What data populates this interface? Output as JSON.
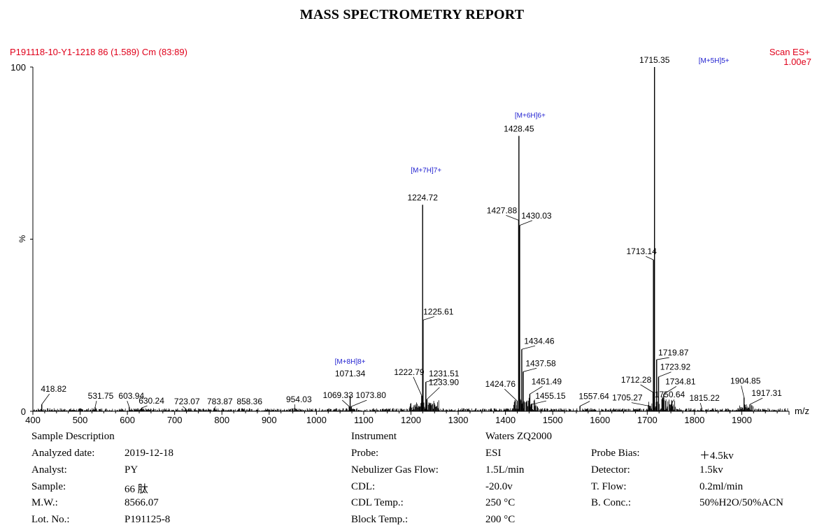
{
  "report_title": "MASS SPECTROMETRY REPORT",
  "chart_data": {
    "type": "line",
    "sample_id": "P191118-10-Y1-1218 86 (1.589) Cm (83:89)",
    "scan_mode": "Scan ES+",
    "intensity": "1.00e7",
    "xlabel": "m/z",
    "ylabel": "%",
    "xlim": [
      400,
      2000
    ],
    "ylim": [
      0,
      100
    ],
    "x_ticks": [
      "400",
      "500",
      "600",
      "700",
      "800",
      "900",
      "1000",
      "1100",
      "1200",
      "1300",
      "1400",
      "1500",
      "1600",
      "1700",
      "1800",
      "1900"
    ],
    "y_ticks": [
      "0",
      "100"
    ],
    "peaks": [
      {
        "mz": 418.82,
        "label": "418.82",
        "rel": 2.0
      },
      {
        "mz": 531.75,
        "label": "531.75",
        "rel": 1.2
      },
      {
        "mz": 603.94,
        "label": "603.94",
        "rel": 1.2
      },
      {
        "mz": 630.24,
        "label": "630.24",
        "rel": 1.0
      },
      {
        "mz": 723.07,
        "label": "723.07",
        "rel": 0.8
      },
      {
        "mz": 783.87,
        "label": "783.87",
        "rel": 0.8
      },
      {
        "mz": 858.36,
        "label": "858.36",
        "rel": 0.8
      },
      {
        "mz": 954.03,
        "label": "954.03",
        "rel": 1.0
      },
      {
        "mz": 1069.33,
        "label": "1069.33",
        "rel": 1.4
      },
      {
        "mz": 1071.34,
        "label": "1071.34",
        "rel": 4.5
      },
      {
        "mz": 1073.8,
        "label": "1073.80",
        "rel": 1.4
      },
      {
        "mz": 1222.79,
        "label": "1222.79",
        "rel": 4.5
      },
      {
        "mz": 1224.72,
        "label": "1224.72",
        "rel": 60
      },
      {
        "mz": 1225.61,
        "label": "1225.61",
        "rel": 26.5
      },
      {
        "mz": 1231.51,
        "label": "1231.51",
        "rel": 8.5
      },
      {
        "mz": 1233.9,
        "label": "1233.90",
        "rel": 3.5
      },
      {
        "mz": 1424.76,
        "label": "1424.76",
        "rel": 3.0
      },
      {
        "mz": 1427.88,
        "label": "1427.88",
        "rel": 55.5
      },
      {
        "mz": 1428.45,
        "label": "1428.45",
        "rel": 80
      },
      {
        "mz": 1430.03,
        "label": "1430.03",
        "rel": 54
      },
      {
        "mz": 1434.46,
        "label": "1434.46",
        "rel": 18
      },
      {
        "mz": 1437.58,
        "label": "1437.58",
        "rel": 11.5
      },
      {
        "mz": 1451.49,
        "label": "1451.49",
        "rel": 5.0
      },
      {
        "mz": 1455.15,
        "label": "1455.15",
        "rel": 2.0
      },
      {
        "mz": 1557.64,
        "label": "1557.64",
        "rel": 1.5
      },
      {
        "mz": 1705.27,
        "label": "1705.27",
        "rel": 1.5
      },
      {
        "mz": 1712.28,
        "label": "1712.28",
        "rel": 5.5
      },
      {
        "mz": 1713.14,
        "label": "1713.14",
        "rel": 44
      },
      {
        "mz": 1715.35,
        "label": "1715.35",
        "rel": 100
      },
      {
        "mz": 1719.87,
        "label": "1719.87",
        "rel": 15
      },
      {
        "mz": 1723.92,
        "label": "1723.92",
        "rel": 10
      },
      {
        "mz": 1734.81,
        "label": "1734.81",
        "rel": 5.0
      },
      {
        "mz": 1750.64,
        "label": "1750.64",
        "rel": 2.0
      },
      {
        "mz": 1815.22,
        "label": "1815.22",
        "rel": 1.0
      },
      {
        "mz": 1904.85,
        "label": "1904.85",
        "rel": 4.0
      },
      {
        "mz": 1917.31,
        "label": "1917.31",
        "rel": 2.0
      }
    ],
    "annotations": [
      {
        "text": "[M+8H]8+",
        "mz": 1071.34
      },
      {
        "text": "[M+7H]7+",
        "mz": 1224.72
      },
      {
        "text": "[M+6H]6+",
        "mz": 1428.45
      },
      {
        "text": "[M+5H]5+",
        "mz": 1715.35
      }
    ],
    "colors": {
      "header": "#e0001a",
      "annotation": "#1f1fd0",
      "trace": "#000000"
    }
  },
  "sample_description": {
    "heading": "Sample Description",
    "rows": [
      {
        "label": "Analyzed date:",
        "value": "2019-12-18"
      },
      {
        "label": "Analyst:",
        "value": "PY"
      },
      {
        "label": "Sample:",
        "value": "66 肽"
      },
      {
        "label": "M.W.:",
        "value": "8566.07"
      },
      {
        "label": "Lot. No.:",
        "value": "P191125-8"
      }
    ]
  },
  "instrument": {
    "heading": "Instrument",
    "model": "Waters ZQ2000",
    "rows": [
      {
        "label": "Probe:",
        "value": "ESI"
      },
      {
        "label": "Nebulizer Gas Flow:",
        "value": "1.5L/min"
      },
      {
        "label": "CDL:",
        "value": "-20.0v"
      },
      {
        "label": "CDL Temp.:",
        "value": "250 °C"
      },
      {
        "label": "Block Temp.:",
        "value": "200 °C"
      }
    ],
    "rows2": [
      {
        "label": "Probe Bias:",
        "value": "＋4.5kv"
      },
      {
        "label": "Detector:",
        "value": "1.5kv"
      },
      {
        "label": "T. Flow:",
        "value": "0.2ml/min"
      },
      {
        "label": "B. Conc.:",
        "value": "50%H2O/50%ACN"
      }
    ]
  }
}
